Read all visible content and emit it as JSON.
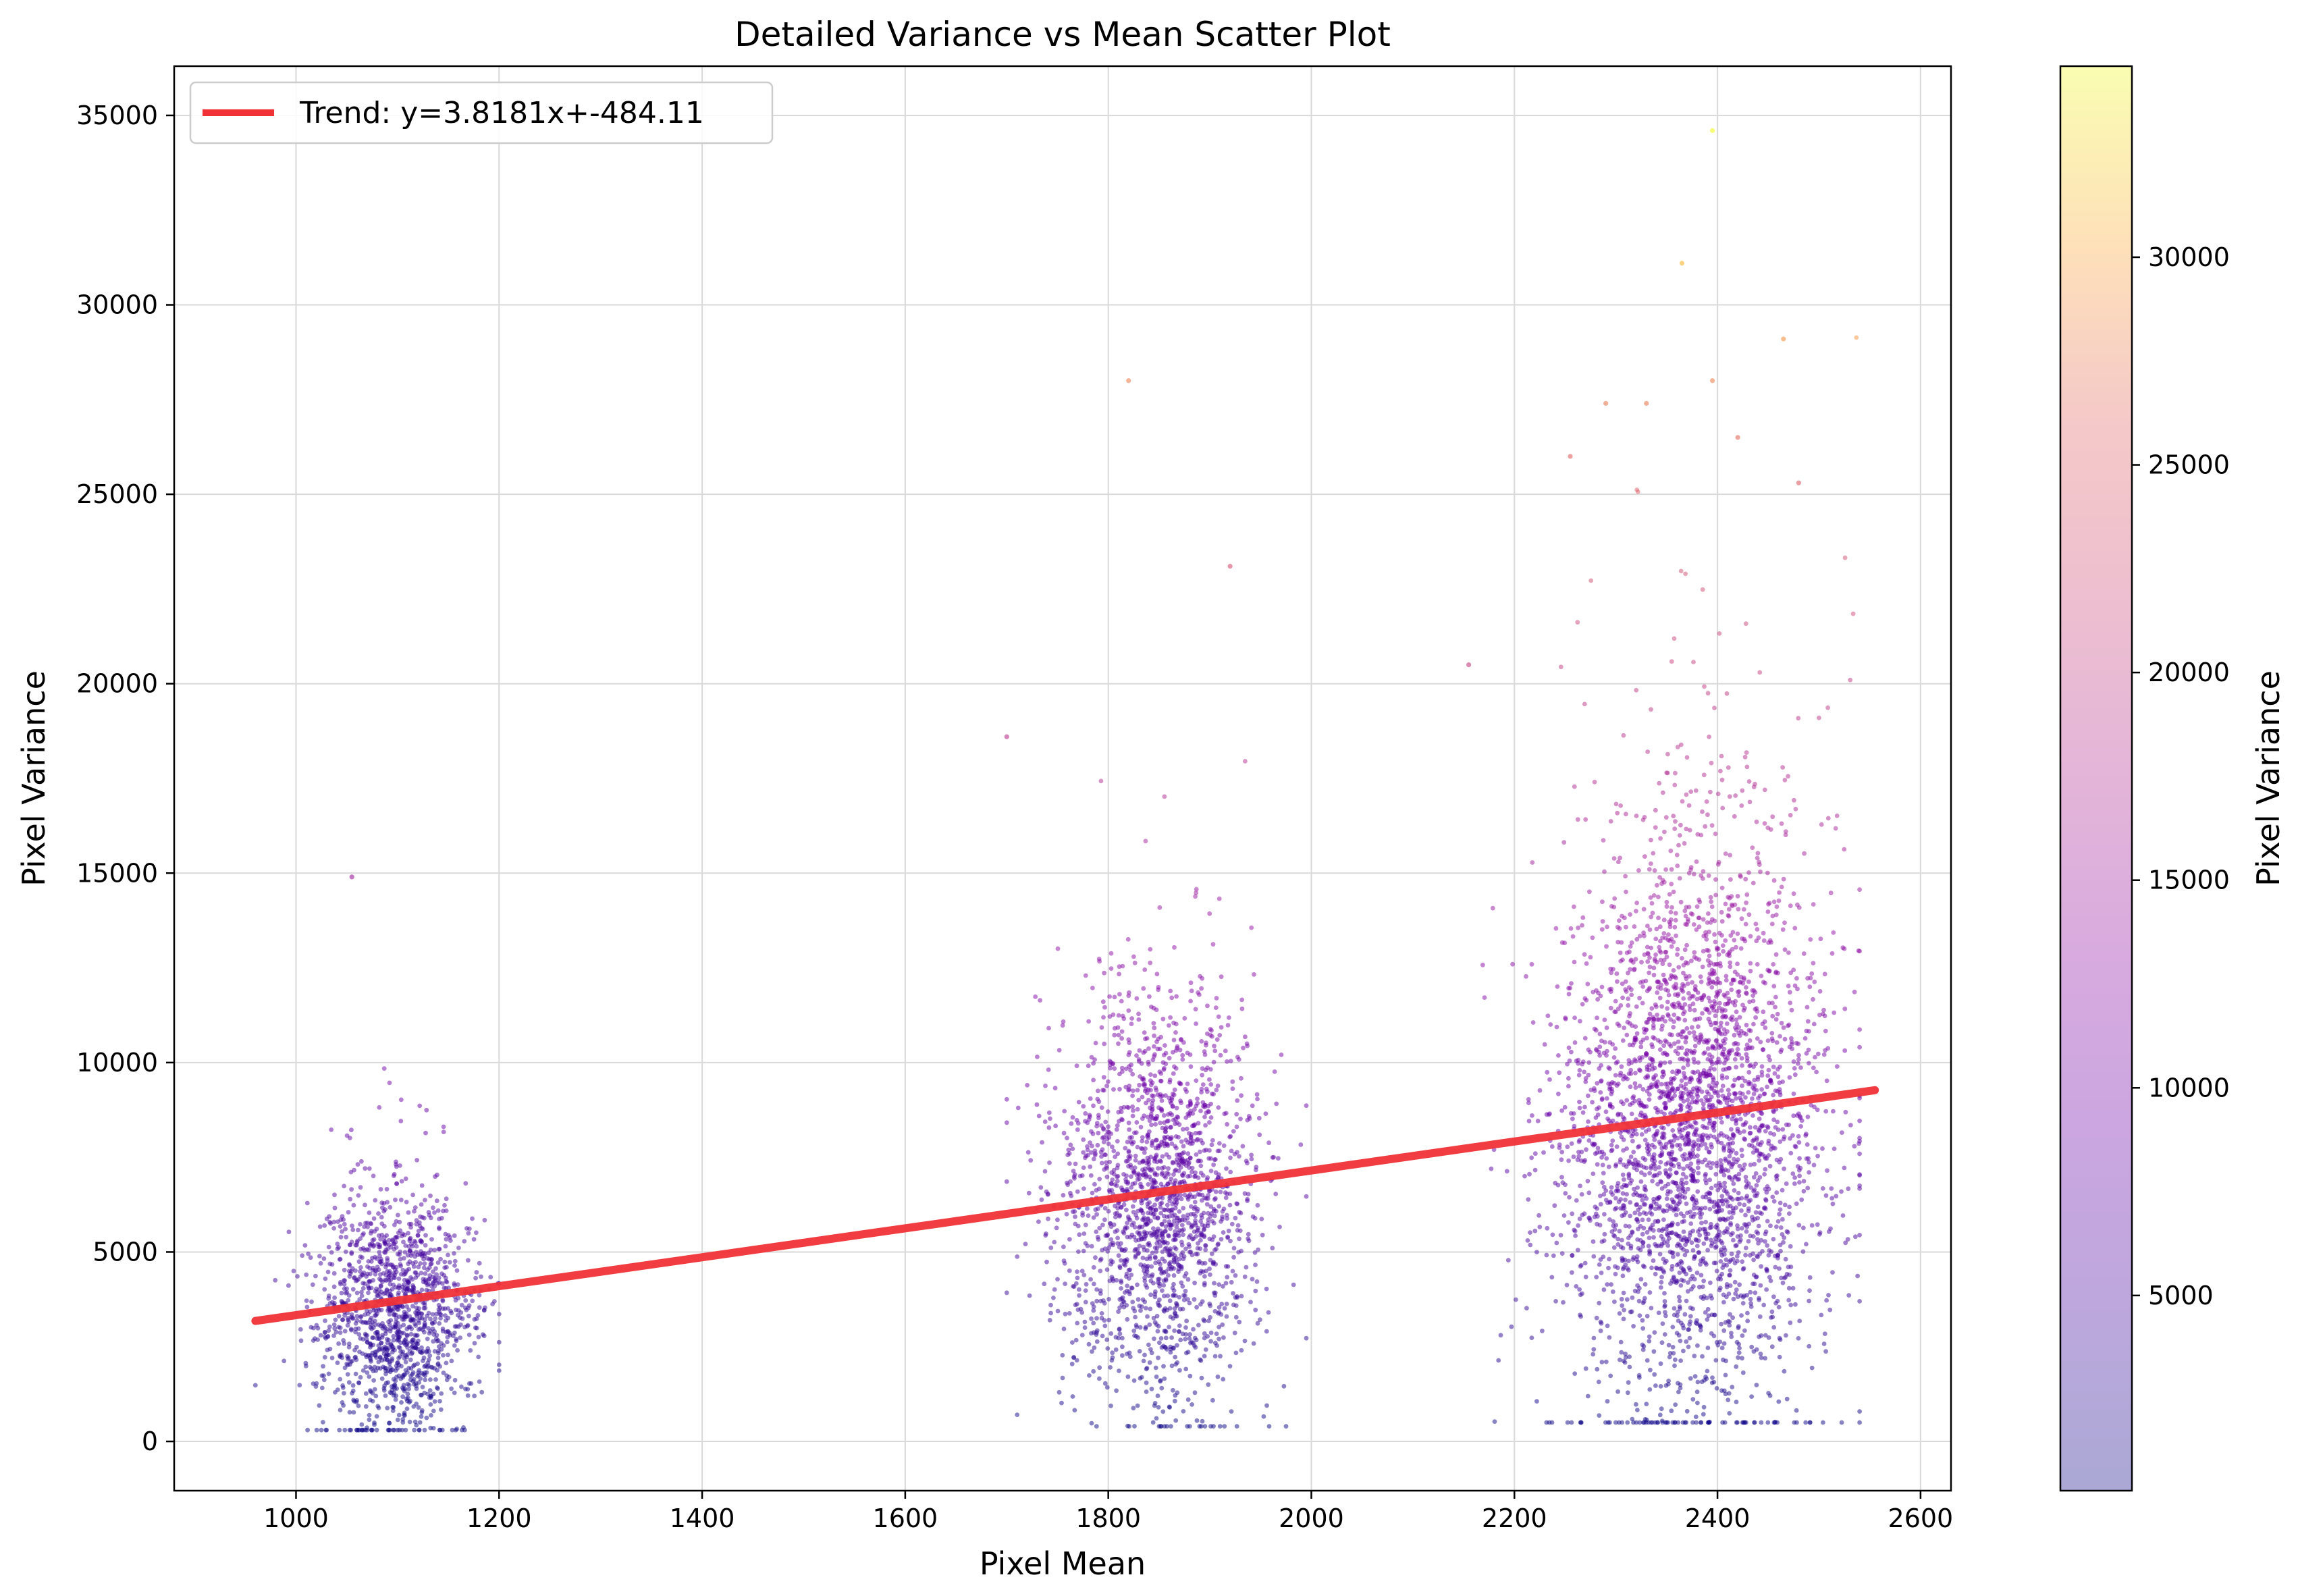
{
  "chart_data": {
    "type": "scatter",
    "title": "Detailed Variance vs Mean Scatter Plot",
    "xlabel": "Pixel Mean",
    "ylabel": "Pixel Variance",
    "xlim": [
      880,
      2630
    ],
    "ylim": [
      -1300,
      36300
    ],
    "xticks": [
      1000,
      1200,
      1400,
      1600,
      1800,
      2000,
      2200,
      2400,
      2600
    ],
    "yticks": [
      0,
      5000,
      10000,
      15000,
      20000,
      25000,
      30000,
      35000
    ],
    "grid": true,
    "legend": {
      "position": "top-left",
      "entries": [
        "Trend: y=3.8181x+-484.11"
      ]
    },
    "trend": {
      "label": "Trend: y=3.8181x+-484.11",
      "slope": 3.8181,
      "intercept": -484.11,
      "x_range": [
        960,
        2555
      ],
      "color": "#f03237"
    },
    "colorbar": {
      "label": "Pixel Variance",
      "range": [
        300,
        34600
      ],
      "ticks": [
        5000,
        10000,
        15000,
        20000,
        25000,
        30000
      ],
      "colormap": "plasma",
      "alpha": 0.35
    },
    "clusters": [
      {
        "x_center": 1100,
        "x_spread": 40,
        "x_range": [
          960,
          1200
        ],
        "y_center": 3300,
        "y_spread": 1600,
        "y_range": [
          300,
          15000
        ],
        "count": 1400
      },
      {
        "x_center": 1850,
        "x_spread": 50,
        "x_range": [
          1700,
          1995
        ],
        "y_center": 6200,
        "y_spread": 2600,
        "y_range": [
          400,
          28000
        ],
        "count": 1900
      },
      {
        "x_center": 2375,
        "x_spread": 65,
        "x_range": [
          2160,
          2540
        ],
        "y_center": 8200,
        "y_spread": 3800,
        "y_range": [
          500,
          34600
        ],
        "count": 3200
      }
    ],
    "notable_points": [
      {
        "x": 2395,
        "y": 34600
      },
      {
        "x": 2365,
        "y": 31100
      },
      {
        "x": 2465,
        "y": 29100
      },
      {
        "x": 1820,
        "y": 28000
      },
      {
        "x": 2395,
        "y": 28000
      },
      {
        "x": 2330,
        "y": 27400
      },
      {
        "x": 2290,
        "y": 27400
      },
      {
        "x": 2420,
        "y": 26500
      },
      {
        "x": 2255,
        "y": 26000
      },
      {
        "x": 2480,
        "y": 25300
      },
      {
        "x": 1055,
        "y": 14900
      },
      {
        "x": 1920,
        "y": 23100
      },
      {
        "x": 2155,
        "y": 20500
      },
      {
        "x": 1700,
        "y": 18600
      }
    ]
  }
}
